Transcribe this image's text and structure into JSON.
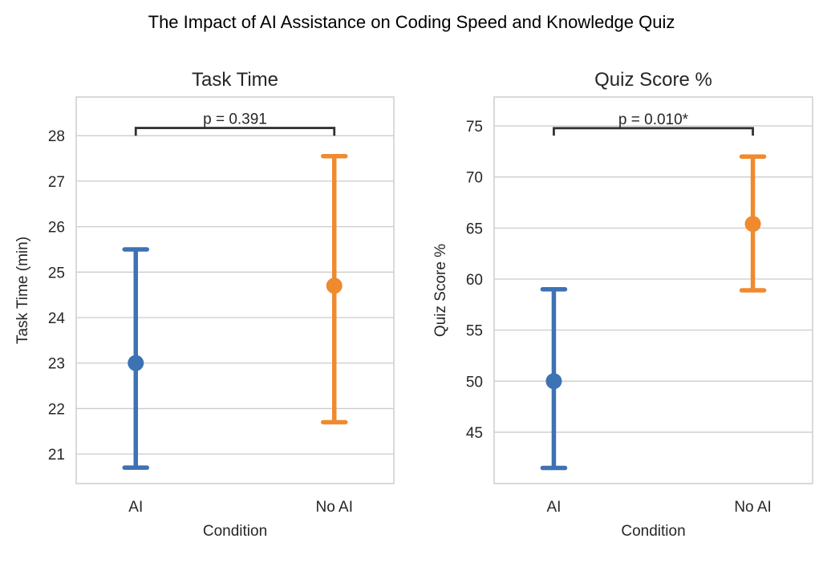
{
  "figure": {
    "suptitle": "The Impact of AI Assistance on Coding Speed and Knowledge Quiz"
  },
  "chart_data": [
    {
      "type": "pointplot-errorbar",
      "title": "Task Time",
      "xlabel": "Condition",
      "ylabel": "Task Time (min)",
      "categories": [
        "AI",
        "No AI"
      ],
      "xlim": [
        -0.3,
        1.3
      ],
      "ylim": [
        20.35,
        28.85
      ],
      "yticks": [
        21,
        22,
        23,
        24,
        25,
        26,
        27,
        28
      ],
      "grid": true,
      "points": [
        {
          "category": "AI",
          "mean": 23.0,
          "ci_low": 20.7,
          "ci_high": 25.5,
          "color": "#3d72b4"
        },
        {
          "category": "No AI",
          "mean": 24.7,
          "ci_low": 21.7,
          "ci_high": 27.55,
          "color": "#ef8a2f"
        }
      ],
      "significance": {
        "label": "p = 0.391",
        "y_base": 28.0,
        "y_top": 28.17
      }
    },
    {
      "type": "pointplot-errorbar",
      "title": "Quiz Score %",
      "xlabel": "Condition",
      "ylabel": "Quiz Score %",
      "categories": [
        "AI",
        "No AI"
      ],
      "xlim": [
        -0.3,
        1.3
      ],
      "ylim": [
        39.97,
        77.83
      ],
      "yticks": [
        45,
        50,
        55,
        60,
        65,
        70,
        75
      ],
      "grid": true,
      "points": [
        {
          "category": "AI",
          "mean": 50.0,
          "ci_low": 41.5,
          "ci_high": 59.0,
          "color": "#3d72b4"
        },
        {
          "category": "No AI",
          "mean": 65.4,
          "ci_low": 58.9,
          "ci_high": 72.0,
          "color": "#ef8a2f"
        }
      ],
      "significance": {
        "label": "p = 0.010*",
        "y_base": 74.05,
        "y_top": 74.78
      }
    }
  ]
}
